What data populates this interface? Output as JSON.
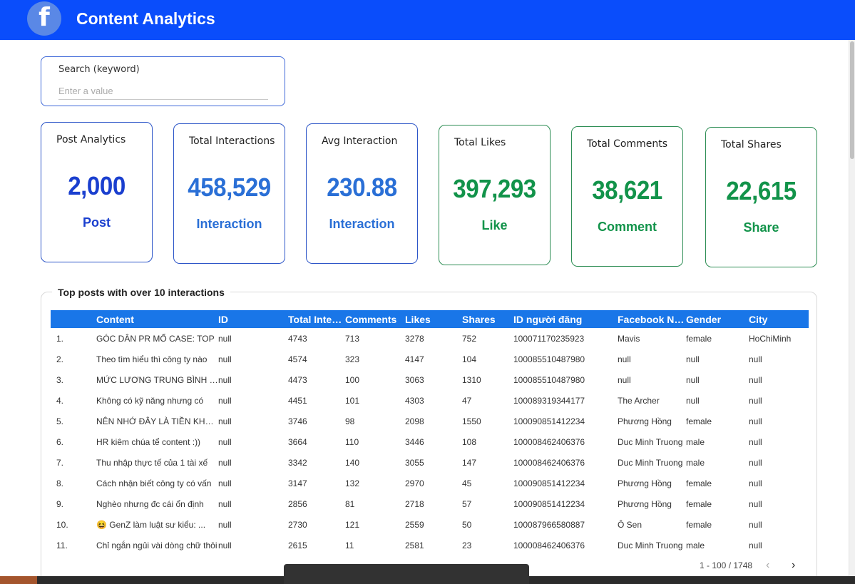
{
  "header": {
    "logo_glyph": "f",
    "title": "Content Analytics",
    "color": "#0a4dfb"
  },
  "search": {
    "label": "Search (keyword)",
    "placeholder": "Enter a value",
    "value": ""
  },
  "kpis": [
    {
      "title": "Post Analytics",
      "value": "2,000",
      "unit": "Post",
      "color": "#1a3fcf"
    },
    {
      "title": "Total Interactions",
      "value": "458,529",
      "unit": "Interaction",
      "color": "#2a6fd6"
    },
    {
      "title": "Avg Interaction",
      "value": "230.88",
      "unit": "Interaction",
      "color": "#2a6fd6"
    },
    {
      "title": "Total Likes",
      "value": "397,293",
      "unit": "Like",
      "color": "#12934a"
    },
    {
      "title": "Total Comments",
      "value": "38,621",
      "unit": "Comment",
      "color": "#12934a"
    },
    {
      "title": "Total Shares",
      "value": "22,615",
      "unit": "Share",
      "color": "#12934a"
    }
  ],
  "table": {
    "title": "Top posts with over 10 interactions",
    "columns": [
      "",
      "Content",
      "ID",
      "Total Interactions",
      "Comments",
      "Likes",
      "Shares",
      "ID người đăng",
      "Facebook Name",
      "Gender",
      "City"
    ],
    "rows": [
      [
        "1.",
        "GÓC DÂN PR MỔ CASE: TOP",
        "null",
        "4743",
        "713",
        "3278",
        "752",
        "100071170235923",
        "Mavis",
        "female",
        "HoChiMinh"
      ],
      [
        "2.",
        "Theo tìm hiểu thì công ty nào",
        "null",
        "4574",
        "323",
        "4147",
        "104",
        "100085510487980",
        "null",
        "null",
        "null"
      ],
      [
        "3.",
        "MỨC LƯƠNG TRUNG BÌNH CỦA",
        "null",
        "4473",
        "100",
        "3063",
        "1310",
        "100085510487980",
        "null",
        "null",
        "null"
      ],
      [
        "4.",
        "Không có kỹ năng nhưng có",
        "null",
        "4451",
        "101",
        "4303",
        "47",
        "100089319344177",
        "The Archer",
        "null",
        "null"
      ],
      [
        "5.",
        "NÊN NHỚ ĐÂY LÀ TIỀN KHÔNG",
        "null",
        "3746",
        "98",
        "2098",
        "1550",
        "100090851412234",
        "Phương Hồng",
        "female",
        "null"
      ],
      [
        "6.",
        "HR kiêm chúa tể content :))",
        "null",
        "3664",
        "110",
        "3446",
        "108",
        "100008462406376",
        "Duc Minh Truong",
        "male",
        "null"
      ],
      [
        "7.",
        "Thu nhập thực tế của 1 tài xế",
        "null",
        "3342",
        "140",
        "3055",
        "147",
        "100008462406376",
        "Duc Minh Truong",
        "male",
        "null"
      ],
      [
        "8.",
        "Cách nhận biết công ty có vấn",
        "null",
        "3147",
        "132",
        "2970",
        "45",
        "100090851412234",
        "Phương Hồng",
        "female",
        "null"
      ],
      [
        "9.",
        "Nghèo nhưng đc cái ổn định",
        "null",
        "2856",
        "81",
        "2718",
        "57",
        "100090851412234",
        "Phương Hồng",
        "female",
        "null"
      ],
      [
        "10.",
        "😆 GenZ làm luật sư kiểu: ...",
        "null",
        "2730",
        "121",
        "2559",
        "50",
        "100087966580887",
        "Ô Sen",
        "female",
        "null"
      ],
      [
        "11.",
        "Chỉ ngắn ngủi vài dòng chữ thôi",
        "null",
        "2615",
        "11",
        "2581",
        "23",
        "100008462406376",
        "Duc Minh Truong",
        "male",
        "null"
      ]
    ]
  },
  "pager": {
    "range": "1 - 100 / 1748",
    "prev_icon": "‹",
    "next_icon": "›"
  }
}
